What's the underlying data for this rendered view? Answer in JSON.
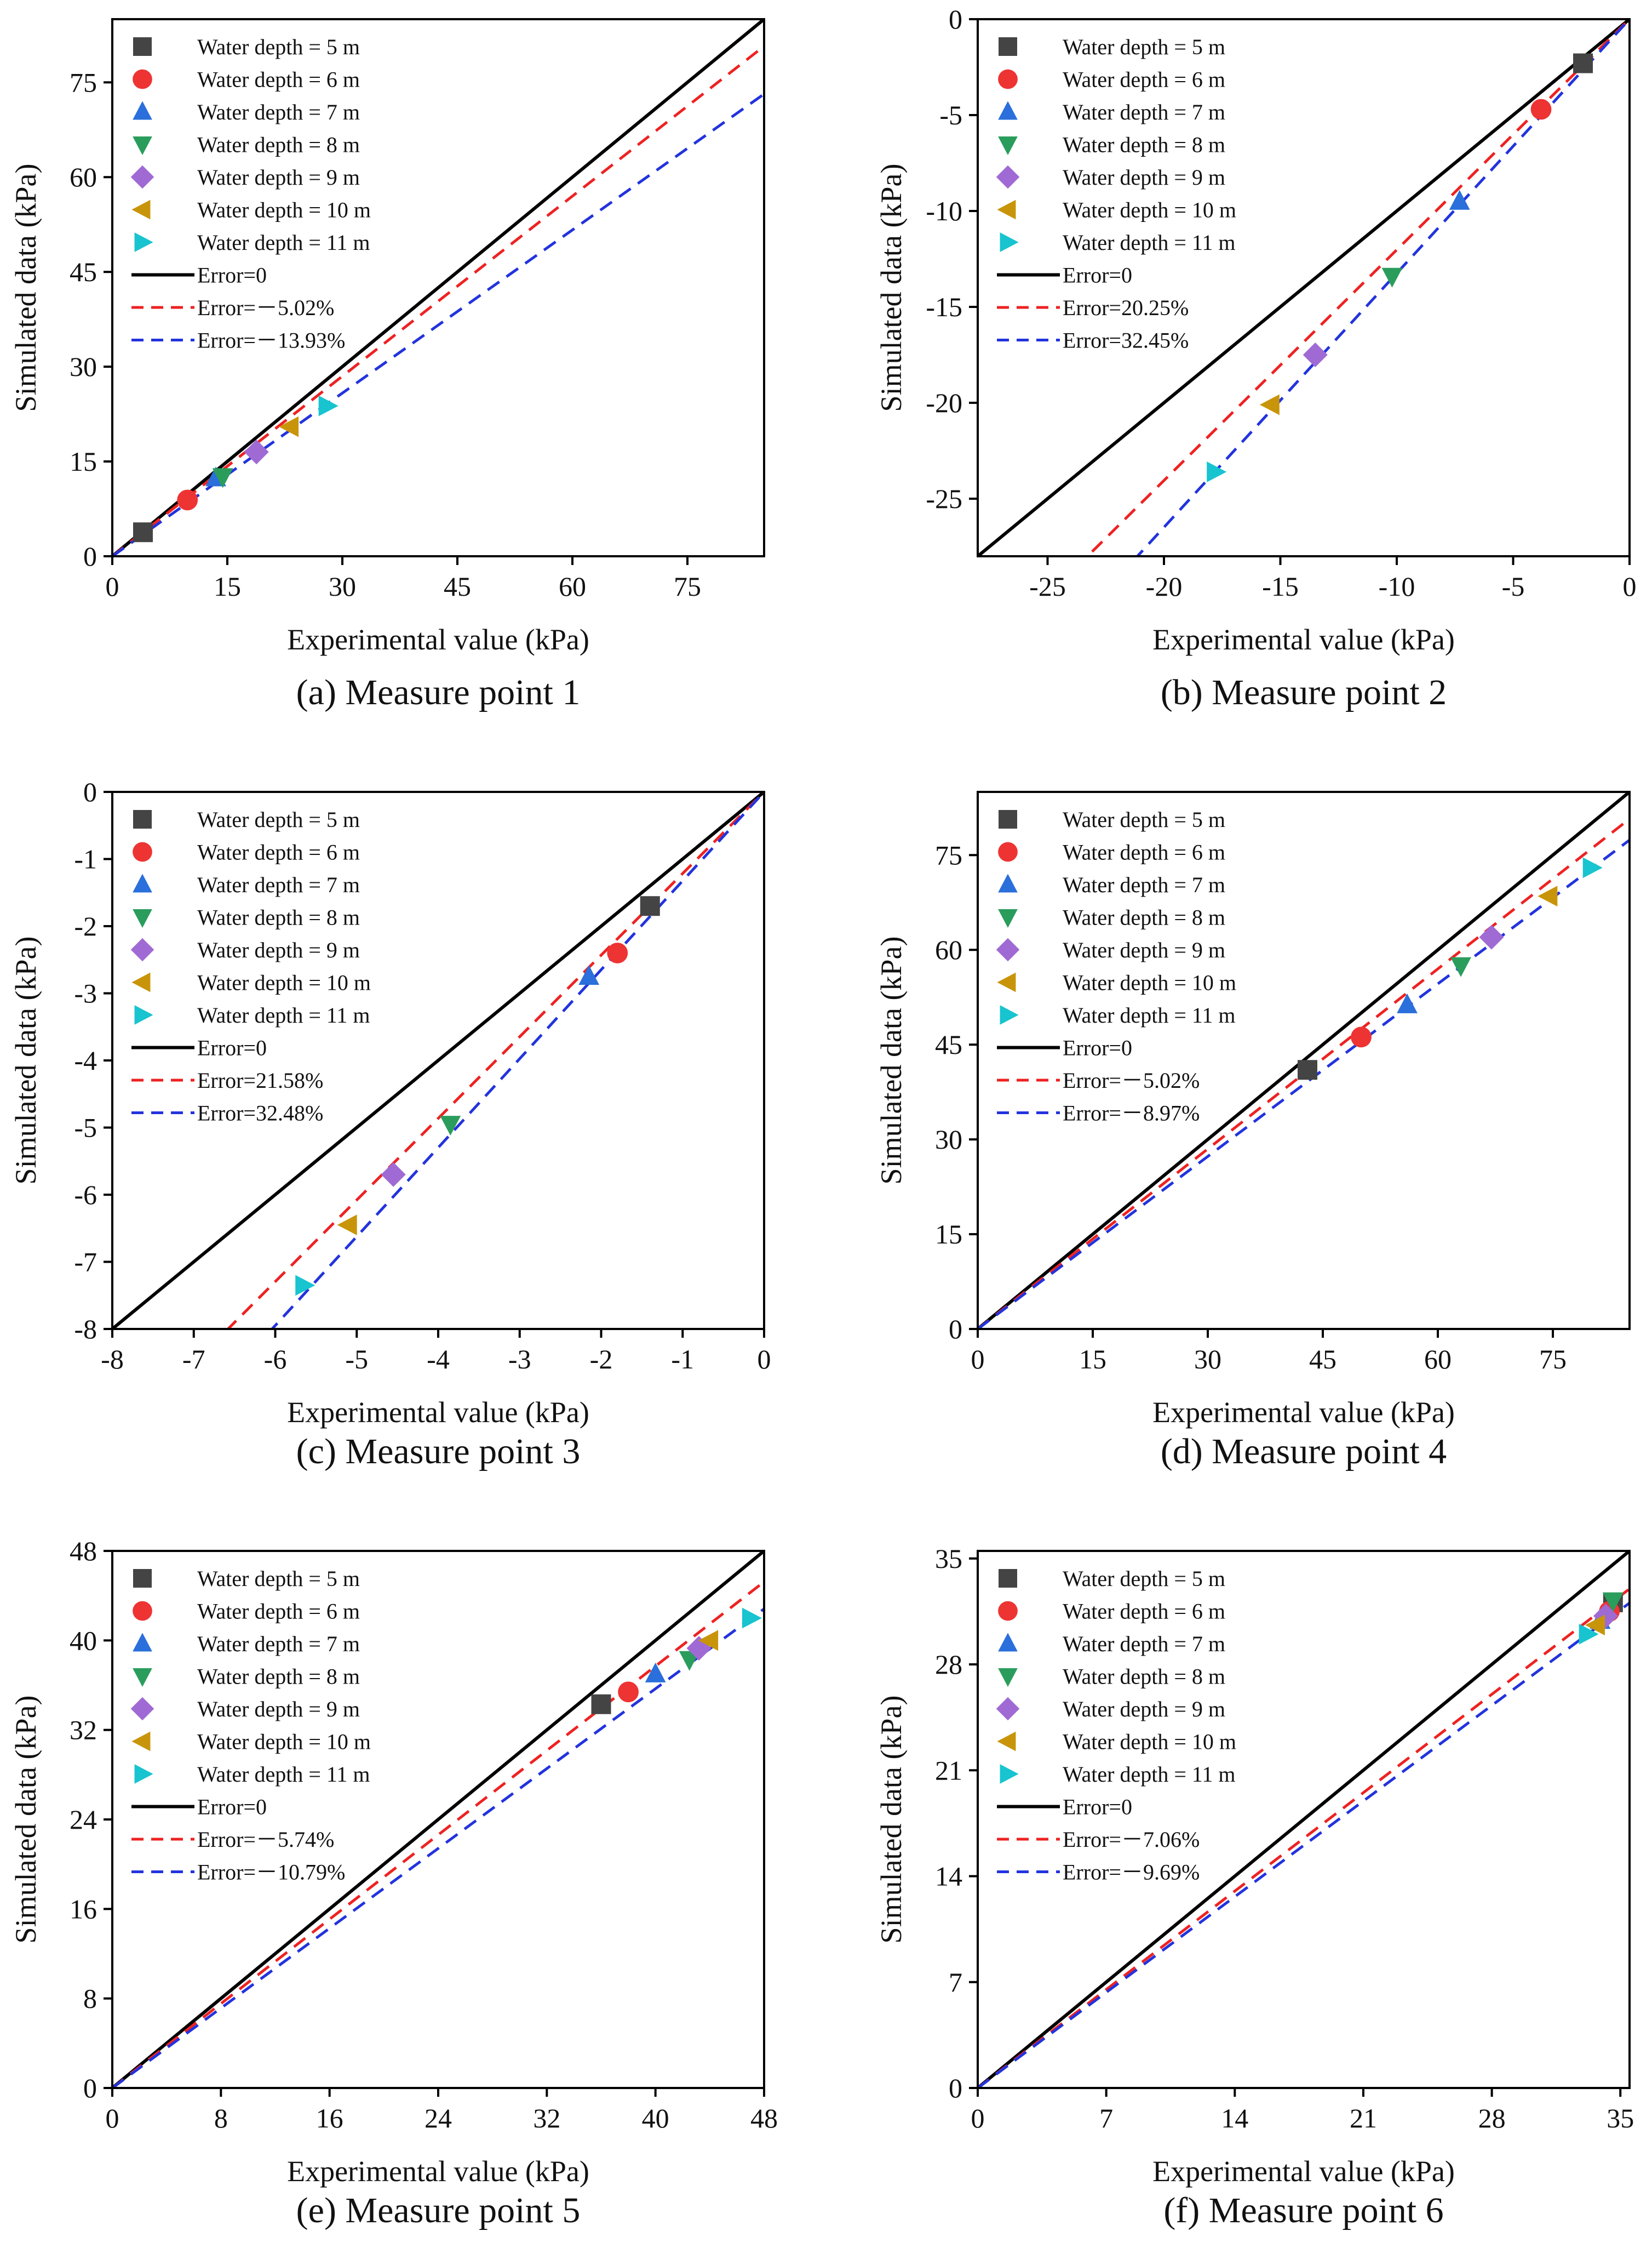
{
  "colors": {
    "series": [
      "#444444",
      "#ee3333",
      "#2a6fdb",
      "#2a9d5c",
      "#a06ad4",
      "#c8950a",
      "#17c4cf"
    ],
    "error_zero": "#000000",
    "error_low": "#ee2222",
    "error_high": "#2233dd"
  },
  "chart_data": [
    {
      "type": "scatter",
      "caption": "(a) Measure point 1",
      "xlabel": "Experimental value (kPa)",
      "ylabel": "Simulated data (kPa)",
      "xlim": [
        0,
        85
      ],
      "ylim": [
        0,
        85
      ],
      "xticks": [
        0,
        15,
        30,
        45,
        60,
        75
      ],
      "yticks": [
        0,
        15,
        30,
        45,
        60,
        75
      ],
      "series": [
        {
          "name": "Water depth = 5 m",
          "marker": "square",
          "x": 4,
          "y": 3.8
        },
        {
          "name": "Water depth = 6 m",
          "marker": "circle",
          "x": 9.8,
          "y": 8.9
        },
        {
          "name": "Water depth = 7 m",
          "marker": "triangle-up",
          "x": 13.5,
          "y": 12.4
        },
        {
          "name": "Water depth = 8 m",
          "marker": "triangle-down",
          "x": 14.4,
          "y": 12.6
        },
        {
          "name": "Water depth = 9 m",
          "marker": "diamond",
          "x": 18.8,
          "y": 16.5
        },
        {
          "name": "Water depth = 10 m",
          "marker": "triangle-left",
          "x": 23.2,
          "y": 20.5
        },
        {
          "name": "Water depth = 11 m",
          "marker": "triangle-right",
          "x": 28.0,
          "y": 23.8
        }
      ],
      "error_lines": [
        {
          "label": "Error=0",
          "style": "solid",
          "slope": 1
        },
        {
          "label": "Error=－5.02%",
          "style": "dashed",
          "slope": 0.9498
        },
        {
          "label": "Error=－13.93%",
          "style": "dashed",
          "slope": 0.8607
        }
      ]
    },
    {
      "type": "scatter",
      "caption": "(b) Measure point 2",
      "xlabel": "Experimental value (kPa)",
      "ylabel": "Simulated data (kPa)",
      "xlim": [
        -28,
        0
      ],
      "ylim": [
        -28,
        0
      ],
      "xticks": [
        -25,
        -20,
        -15,
        -10,
        -5,
        0
      ],
      "yticks": [
        -25,
        -20,
        -15,
        -10,
        -5,
        0
      ],
      "series": [
        {
          "name": "Water depth = 5 m",
          "marker": "square",
          "x": -2.0,
          "y": -2.3
        },
        {
          "name": "Water depth = 6 m",
          "marker": "circle",
          "x": -3.8,
          "y": -4.7
        },
        {
          "name": "Water depth = 7 m",
          "marker": "triangle-up",
          "x": -7.3,
          "y": -9.5
        },
        {
          "name": "Water depth = 8 m",
          "marker": "triangle-down",
          "x": -10.2,
          "y": -13.4
        },
        {
          "name": "Water depth = 9 m",
          "marker": "diamond",
          "x": -13.5,
          "y": -17.5
        },
        {
          "name": "Water depth = 10 m",
          "marker": "triangle-left",
          "x": -15.4,
          "y": -20.1
        },
        {
          "name": "Water depth = 11 m",
          "marker": "triangle-right",
          "x": -17.8,
          "y": -23.6
        }
      ],
      "error_lines": [
        {
          "label": "Error=0",
          "style": "solid",
          "slope": 1
        },
        {
          "label": "Error=20.25%",
          "style": "dashed",
          "slope": 1.2025
        },
        {
          "label": "Error=32.45%",
          "style": "dashed",
          "slope": 1.3245
        }
      ]
    },
    {
      "type": "scatter",
      "caption": "(c) Measure point 3",
      "xlabel": "Experimental value (kPa)",
      "ylabel": "Simulated data (kPa)",
      "xlim": [
        -8,
        0
      ],
      "ylim": [
        -8,
        0
      ],
      "xticks": [
        -8,
        -7,
        -6,
        -5,
        -4,
        -3,
        -2,
        -1,
        0
      ],
      "yticks": [
        -8,
        -7,
        -6,
        -5,
        -4,
        -3,
        -2,
        -1,
        0
      ],
      "series": [
        {
          "name": "Water depth = 5 m",
          "marker": "square",
          "x": -1.4,
          "y": -1.7
        },
        {
          "name": "Water depth = 6 m",
          "marker": "circle",
          "x": -1.8,
          "y": -2.4
        },
        {
          "name": "Water depth = 7 m",
          "marker": "triangle-up",
          "x": -2.15,
          "y": -2.75
        },
        {
          "name": "Water depth = 8 m",
          "marker": "triangle-down",
          "x": -3.85,
          "y": -4.95
        },
        {
          "name": "Water depth = 9 m",
          "marker": "diamond",
          "x": -4.55,
          "y": -5.7
        },
        {
          "name": "Water depth = 10 m",
          "marker": "triangle-left",
          "x": -5.1,
          "y": -6.45
        },
        {
          "name": "Water depth = 11 m",
          "marker": "triangle-right",
          "x": -5.65,
          "y": -7.35
        }
      ],
      "error_lines": [
        {
          "label": "Error=0",
          "style": "solid",
          "slope": 1
        },
        {
          "label": "Error=21.58%",
          "style": "dashed",
          "slope": 1.2158
        },
        {
          "label": "Error=32.48%",
          "style": "dashed",
          "slope": 1.3248
        }
      ]
    },
    {
      "type": "scatter",
      "caption": "(d) Measure point  4",
      "xlabel": "Experimental value (kPa)",
      "ylabel": "Simulated data (kPa)",
      "xlim": [
        0,
        85
      ],
      "ylim": [
        0,
        85
      ],
      "xticks": [
        0,
        15,
        30,
        45,
        60,
        75
      ],
      "yticks": [
        0,
        15,
        30,
        45,
        60,
        75
      ],
      "series": [
        {
          "name": "Water depth = 5 m",
          "marker": "square",
          "x": 43,
          "y": 41
        },
        {
          "name": "Water depth = 6 m",
          "marker": "circle",
          "x": 50,
          "y": 46.2
        },
        {
          "name": "Water depth = 7 m",
          "marker": "triangle-up",
          "x": 56,
          "y": 51.3
        },
        {
          "name": "Water depth = 8 m",
          "marker": "triangle-down",
          "x": 63,
          "y": 57.5
        },
        {
          "name": "Water depth = 9 m",
          "marker": "diamond",
          "x": 67,
          "y": 62
        },
        {
          "name": "Water depth = 10 m",
          "marker": "triangle-left",
          "x": 74.5,
          "y": 68.5
        },
        {
          "name": "Water depth = 11 m",
          "marker": "triangle-right",
          "x": 80,
          "y": 73
        }
      ],
      "error_lines": [
        {
          "label": "Error=0",
          "style": "solid",
          "slope": 1
        },
        {
          "label": "Error=－5.02%",
          "style": "dashed",
          "slope": 0.9498
        },
        {
          "label": "Error=－8.97%",
          "style": "dashed",
          "slope": 0.9103
        }
      ]
    },
    {
      "type": "scatter",
      "caption": "(e) Measure point 5",
      "xlabel": "Experimental value (kPa)",
      "ylabel": "Simulated data (kPa)",
      "xlim": [
        0,
        48
      ],
      "ylim": [
        0,
        48
      ],
      "xticks": [
        0,
        8,
        16,
        24,
        32,
        40,
        48
      ],
      "yticks": [
        0,
        8,
        16,
        24,
        32,
        40,
        48
      ],
      "series": [
        {
          "name": "Water depth = 5 m",
          "marker": "square",
          "x": 36,
          "y": 34.3
        },
        {
          "name": "Water depth = 6 m",
          "marker": "circle",
          "x": 38,
          "y": 35.4
        },
        {
          "name": "Water depth = 7 m",
          "marker": "triangle-up",
          "x": 40,
          "y": 37
        },
        {
          "name": "Water depth = 8 m",
          "marker": "triangle-down",
          "x": 42.5,
          "y": 38.3
        },
        {
          "name": "Water depth = 9 m",
          "marker": "diamond",
          "x": 43.2,
          "y": 39.3
        },
        {
          "name": "Water depth = 10 m",
          "marker": "triangle-left",
          "x": 44,
          "y": 40
        },
        {
          "name": "Water depth = 11 m",
          "marker": "triangle-right",
          "x": 47,
          "y": 42
        }
      ],
      "error_lines": [
        {
          "label": "Error=0",
          "style": "solid",
          "slope": 1
        },
        {
          "label": "Error=－5.74%",
          "style": "dashed",
          "slope": 0.9426
        },
        {
          "label": "Error=－10.79%",
          "style": "dashed",
          "slope": 0.8921
        }
      ]
    },
    {
      "type": "scatter",
      "caption": "(f) Measure point 6",
      "xlabel": "Experimental value (kPa)",
      "ylabel": "Simulated data (kPa)",
      "xlim": [
        0,
        35.5
      ],
      "ylim": [
        0,
        35.5
      ],
      "xticks": [
        0,
        7,
        14,
        21,
        28,
        35
      ],
      "yticks": [
        0,
        7,
        14,
        21,
        28,
        35
      ],
      "series": [
        {
          "name": "Water depth = 5 m",
          "marker": "square",
          "x": 34.6,
          "y": 32.1
        },
        {
          "name": "Water depth = 6 m",
          "marker": "circle",
          "x": 34.4,
          "y": 31.5
        },
        {
          "name": "Water depth = 7 m",
          "marker": "triangle-up",
          "x": 33.9,
          "y": 30.9
        },
        {
          "name": "Water depth = 8 m",
          "marker": "triangle-down",
          "x": 34.6,
          "y": 32.2
        },
        {
          "name": "Water depth = 9 m",
          "marker": "diamond",
          "x": 34.2,
          "y": 31.2
        },
        {
          "name": "Water depth = 10 m",
          "marker": "triangle-left",
          "x": 33.7,
          "y": 30.6
        },
        {
          "name": "Water depth = 11 m",
          "marker": "triangle-right",
          "x": 33.2,
          "y": 30.0
        }
      ],
      "error_lines": [
        {
          "label": "Error=0",
          "style": "solid",
          "slope": 1
        },
        {
          "label": "Error=－7.06%",
          "style": "dashed",
          "slope": 0.9294
        },
        {
          "label": "Error=－9.69%",
          "style": "dashed",
          "slope": 0.9031
        }
      ]
    }
  ]
}
